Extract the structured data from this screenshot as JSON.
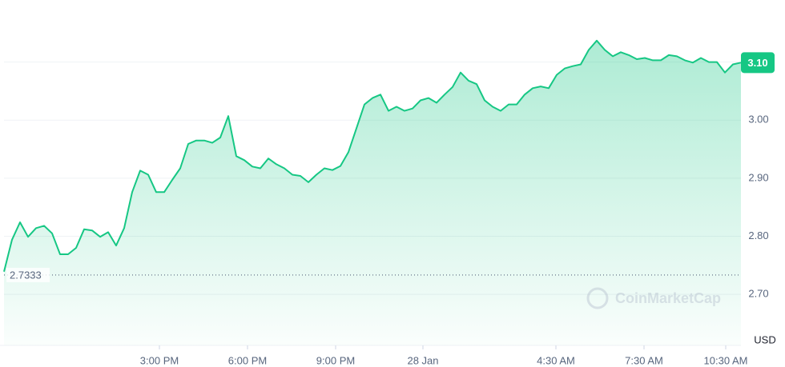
{
  "chart_data": {
    "type": "line",
    "color": "#16c784",
    "values": [
      2.739,
      2.794,
      2.824,
      2.799,
      2.814,
      2.818,
      2.805,
      2.769,
      2.769,
      2.78,
      2.812,
      2.81,
      2.799,
      2.807,
      2.784,
      2.814,
      2.876,
      2.913,
      2.906,
      2.876,
      2.876,
      2.897,
      2.917,
      2.959,
      2.965,
      2.965,
      2.961,
      2.97,
      3.007,
      2.938,
      2.931,
      2.92,
      2.917,
      2.934,
      2.924,
      2.917,
      2.906,
      2.904,
      2.893,
      2.906,
      2.917,
      2.914,
      2.921,
      2.945,
      2.986,
      3.027,
      3.038,
      3.044,
      3.016,
      3.023,
      3.016,
      3.02,
      3.034,
      3.038,
      3.03,
      3.044,
      3.057,
      3.082,
      3.068,
      3.062,
      3.034,
      3.023,
      3.016,
      3.027,
      3.027,
      3.044,
      3.055,
      3.058,
      3.055,
      3.078,
      3.089,
      3.093,
      3.096,
      3.121,
      3.137,
      3.121,
      3.11,
      3.117,
      3.112,
      3.105,
      3.107,
      3.103,
      3.103,
      3.112,
      3.11,
      3.103,
      3.099,
      3.107,
      3.1,
      3.1,
      3.082,
      3.096,
      3.099
    ],
    "ylim": [
      2.612,
      3.2
    ],
    "yticks": [
      {
        "value": 2.7,
        "label": "2.70"
      },
      {
        "value": 2.8,
        "label": "2.80"
      },
      {
        "value": 2.9,
        "label": "2.90"
      },
      {
        "value": 3.0,
        "label": "3.00"
      },
      {
        "value": 3.1,
        "label": "3.10"
      }
    ],
    "xticks": [
      {
        "value": 19.4,
        "label": "3:00 PM"
      },
      {
        "value": 30.4,
        "label": "6:00 PM"
      },
      {
        "value": 41.4,
        "label": "9:00 PM"
      },
      {
        "value": 52.3,
        "label": "28 Jan"
      },
      {
        "value": 68.9,
        "label": "4:30 AM"
      },
      {
        "value": 79.9,
        "label": "7:30 AM"
      },
      {
        "value": 90.1,
        "label": "10:30 AM"
      }
    ],
    "grid": true,
    "reference_line": 2.7333,
    "price_label": "3.10",
    "y_unit": "USD",
    "watermark": "CoinMarketCap"
  }
}
